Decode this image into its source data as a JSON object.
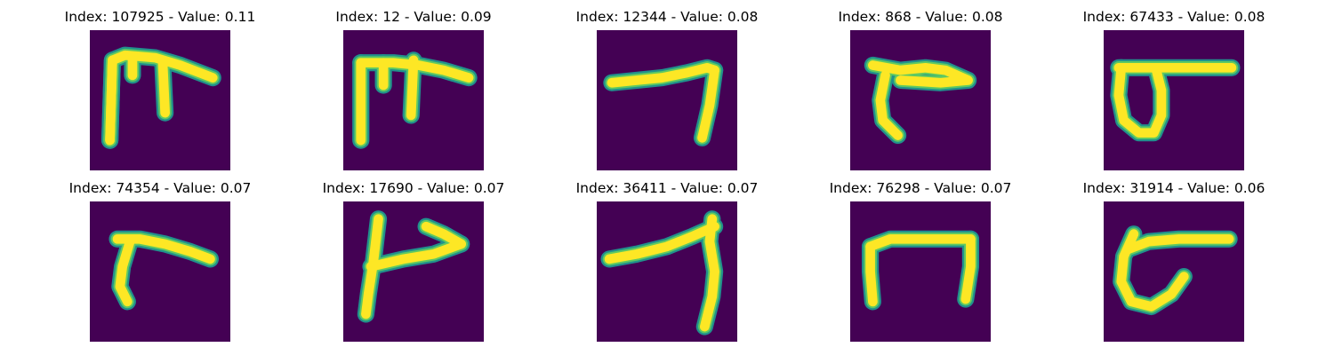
{
  "colors": {
    "background": "#440154",
    "edge": "#21918c",
    "mid": "#5ec962",
    "stroke": "#fde725"
  },
  "panels": [
    {
      "title": "Index: 107925 - Value: 0.11",
      "index": 107925,
      "value": 0.11,
      "glyph": "abstract-letterform-1"
    },
    {
      "title": "Index: 12 - Value: 0.09",
      "index": 12,
      "value": 0.09,
      "glyph": "abstract-letterform-2"
    },
    {
      "title": "Index: 12344 - Value: 0.08",
      "index": 12344,
      "value": 0.08,
      "glyph": "abstract-letterform-3"
    },
    {
      "title": "Index: 868 - Value: 0.08",
      "index": 868,
      "value": 0.08,
      "glyph": "abstract-letterform-4"
    },
    {
      "title": "Index: 67433 - Value: 0.08",
      "index": 67433,
      "value": 0.08,
      "glyph": "abstract-letterform-5"
    },
    {
      "title": "Index: 74354 - Value: 0.07",
      "index": 74354,
      "value": 0.07,
      "glyph": "abstract-letterform-6"
    },
    {
      "title": "Index: 17690 - Value: 0.07",
      "index": 17690,
      "value": 0.07,
      "glyph": "abstract-letterform-7"
    },
    {
      "title": "Index: 36411 - Value: 0.07",
      "index": 36411,
      "value": 0.07,
      "glyph": "abstract-letterform-8"
    },
    {
      "title": "Index: 76298 - Value: 0.07",
      "index": 76298,
      "value": 0.07,
      "glyph": "abstract-letterform-9"
    },
    {
      "title": "Index: 31914 - Value: 0.06",
      "index": 31914,
      "value": 0.06,
      "glyph": "abstract-letterform-10"
    }
  ]
}
